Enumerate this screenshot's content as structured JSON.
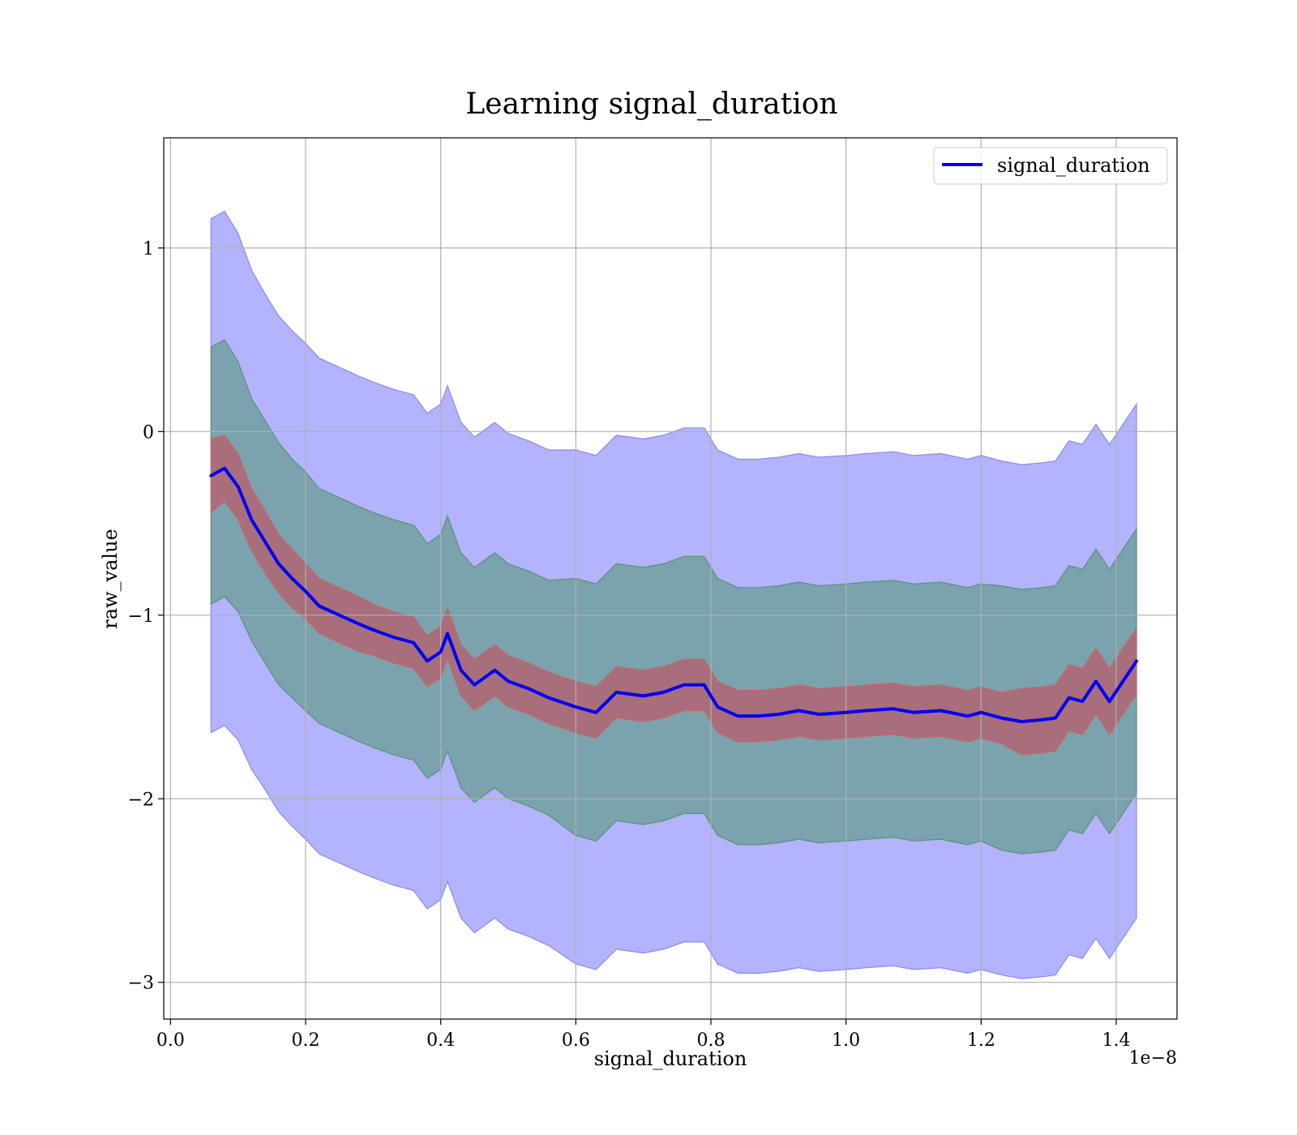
{
  "chart_data": {
    "type": "line",
    "title": "Learning signal_duration",
    "xlabel": "signal_duration",
    "ylabel": "raw_value",
    "x_offset_text": "1e−8",
    "xlim": [
      -0.01,
      1.49
    ],
    "ylim": [
      -3.2,
      1.6
    ],
    "x_ticks": [
      0.0,
      0.2,
      0.4,
      0.6,
      0.8,
      1.0,
      1.2,
      1.4
    ],
    "x_tick_labels": [
      "0.0",
      "0.2",
      "0.4",
      "0.6",
      "0.8",
      "1.0",
      "1.2",
      "1.4"
    ],
    "y_ticks": [
      1,
      0,
      -1,
      -2,
      -3
    ],
    "y_tick_labels": [
      "1",
      "0",
      "−1",
      "−2",
      "−3"
    ],
    "grid": true,
    "legend_position": "top-right",
    "colors": {
      "line": "#0000ee",
      "band_outer": "#b3b3ff",
      "band_outer_edge": "#8a8af5",
      "band_middle": "#7aa3ad",
      "band_middle_edge": "#5f8f77",
      "band_inner": "#a86e7c",
      "band_inner_edge": "#c26a6a"
    },
    "series": [
      {
        "name": "signal_duration",
        "x": [
          0.06,
          0.08,
          0.1,
          0.12,
          0.14,
          0.16,
          0.18,
          0.2,
          0.22,
          0.25,
          0.28,
          0.3,
          0.33,
          0.36,
          0.38,
          0.4,
          0.41,
          0.43,
          0.45,
          0.48,
          0.5,
          0.53,
          0.56,
          0.6,
          0.63,
          0.66,
          0.7,
          0.73,
          0.76,
          0.79,
          0.81,
          0.84,
          0.87,
          0.9,
          0.93,
          0.96,
          1.0,
          1.03,
          1.07,
          1.1,
          1.14,
          1.18,
          1.2,
          1.23,
          1.26,
          1.29,
          1.31,
          1.33,
          1.35,
          1.37,
          1.39,
          1.43
        ],
        "values": [
          -0.24,
          -0.2,
          -0.3,
          -0.48,
          -0.6,
          -0.72,
          -0.8,
          -0.87,
          -0.95,
          -1.0,
          -1.05,
          -1.08,
          -1.12,
          -1.15,
          -1.25,
          -1.2,
          -1.1,
          -1.3,
          -1.38,
          -1.3,
          -1.36,
          -1.4,
          -1.45,
          -1.5,
          -1.53,
          -1.42,
          -1.44,
          -1.42,
          -1.38,
          -1.38,
          -1.5,
          -1.55,
          -1.55,
          -1.54,
          -1.52,
          -1.54,
          -1.53,
          -1.52,
          -1.51,
          -1.53,
          -1.52,
          -1.55,
          -1.53,
          -1.56,
          -1.58,
          -1.57,
          -1.56,
          -1.45,
          -1.47,
          -1.36,
          -1.47,
          -1.25
        ],
        "band_inner_halfwidth": [
          0.2,
          0.18,
          0.18,
          0.17,
          0.17,
          0.16,
          0.16,
          0.15,
          0.15,
          0.15,
          0.15,
          0.14,
          0.14,
          0.14,
          0.14,
          0.14,
          0.14,
          0.14,
          0.14,
          0.14,
          0.14,
          0.14,
          0.14,
          0.14,
          0.14,
          0.14,
          0.14,
          0.14,
          0.14,
          0.14,
          0.14,
          0.14,
          0.14,
          0.14,
          0.14,
          0.14,
          0.14,
          0.14,
          0.14,
          0.14,
          0.14,
          0.14,
          0.14,
          0.14,
          0.18,
          0.18,
          0.18,
          0.18,
          0.18,
          0.18,
          0.18,
          0.18
        ],
        "band_middle_halfwidth": [
          0.7,
          0.7,
          0.68,
          0.66,
          0.66,
          0.66,
          0.65,
          0.65,
          0.64,
          0.64,
          0.64,
          0.64,
          0.64,
          0.64,
          0.64,
          0.64,
          0.64,
          0.64,
          0.64,
          0.64,
          0.64,
          0.64,
          0.64,
          0.7,
          0.7,
          0.7,
          0.7,
          0.7,
          0.7,
          0.7,
          0.7,
          0.7,
          0.7,
          0.7,
          0.7,
          0.7,
          0.7,
          0.7,
          0.7,
          0.7,
          0.7,
          0.7,
          0.7,
          0.72,
          0.72,
          0.72,
          0.72,
          0.72,
          0.72,
          0.72,
          0.72,
          0.72
        ],
        "band_outer_halfwidth": [
          1.4,
          1.4,
          1.38,
          1.36,
          1.35,
          1.35,
          1.35,
          1.35,
          1.35,
          1.35,
          1.35,
          1.35,
          1.35,
          1.35,
          1.35,
          1.35,
          1.35,
          1.35,
          1.35,
          1.35,
          1.35,
          1.35,
          1.35,
          1.4,
          1.4,
          1.4,
          1.4,
          1.4,
          1.4,
          1.4,
          1.4,
          1.4,
          1.4,
          1.4,
          1.4,
          1.4,
          1.4,
          1.4,
          1.4,
          1.4,
          1.4,
          1.4,
          1.4,
          1.4,
          1.4,
          1.4,
          1.4,
          1.4,
          1.4,
          1.4,
          1.4,
          1.4
        ]
      }
    ]
  }
}
